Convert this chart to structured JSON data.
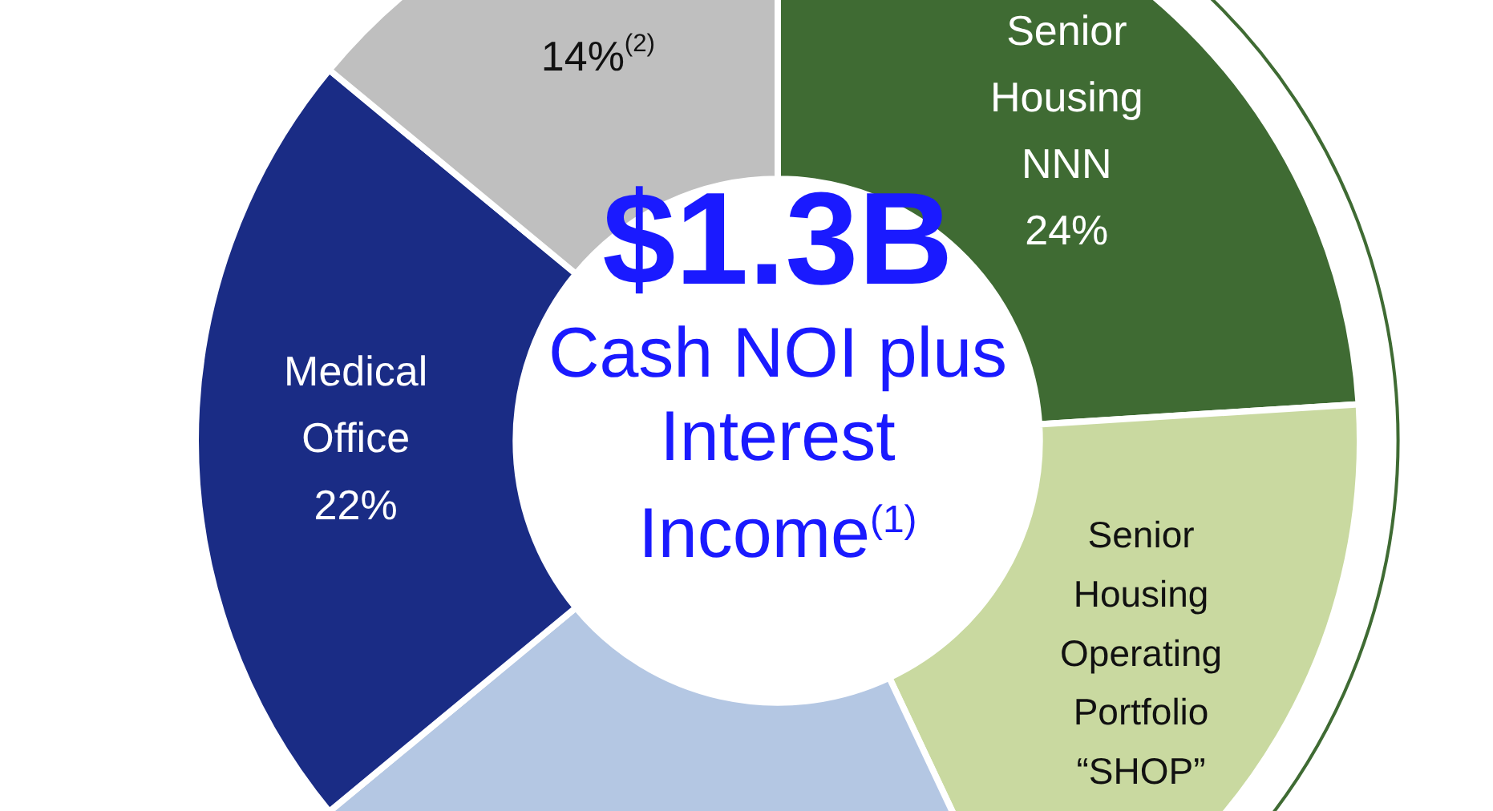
{
  "chart_data": {
    "type": "donut",
    "title": "$1.3B",
    "subtitle": "Cash NOI plus Interest Income$^{(1)}$",
    "categories": [
      "Senior Housing NNN",
      "Senior Housing Operating Portfolio “SHOP”",
      null,
      "Medical Office",
      null
    ],
    "values": [
      24,
      19,
      21,
      22,
      14
    ],
    "colors": [
      "#3f6b33",
      "#c9d9a0",
      "#b4c7e3",
      "#1a2c85",
      "#bfbfbf"
    ],
    "value_labels": [
      "24%",
      null,
      null,
      "22%",
      "14%$^{(2)}$"
    ],
    "legend": false
  }
}
